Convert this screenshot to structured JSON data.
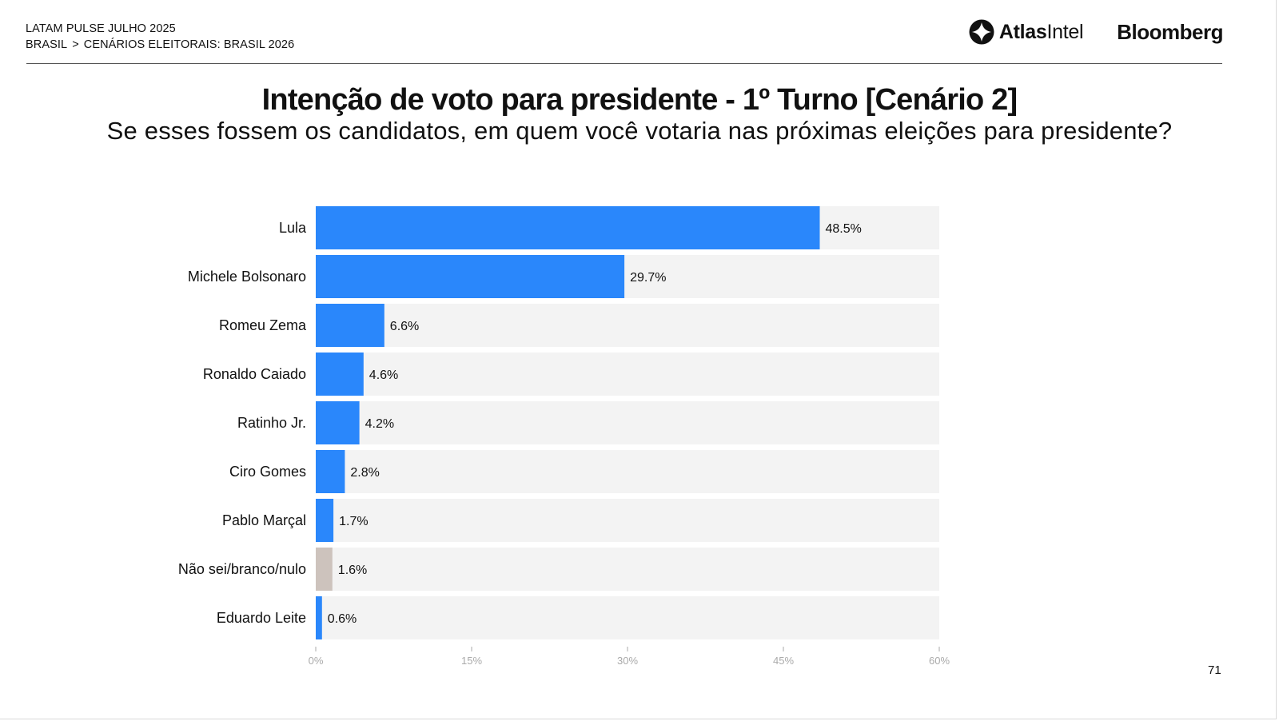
{
  "header": {
    "line1": "LATAM PULSE JULHO 2025",
    "crumb_root": "BRASIL",
    "crumb_separator": ">",
    "crumb_current": "CENÁRIOS ELEITORAIS: BRASIL 2026",
    "brand_atlas_bold": "Atlas",
    "brand_atlas_regular": "Intel",
    "brand_bloomberg": "Bloomberg"
  },
  "page_number": "71",
  "colors": {
    "bar_candidate": "#2a87fb",
    "bar_undecided": "#cdc3bd",
    "track": "#f3f3f3",
    "tick": "#aaaaaa"
  },
  "chart_data": {
    "type": "bar",
    "orientation": "horizontal",
    "title": "Intenção de voto para presidente - 1º Turno [Cenário 2]",
    "subtitle": "Se esses fossem os candidatos, em quem você votaria nas próximas eleições para presidente?",
    "categories": [
      "Lula",
      "Michele Bolsonaro",
      "Romeu Zema",
      "Ronaldo Caiado",
      "Ratinho Jr.",
      "Ciro Gomes",
      "Pablo Marçal",
      "Não sei/branco/nulo",
      "Eduardo Leite"
    ],
    "values": [
      48.5,
      29.7,
      6.6,
      4.6,
      4.2,
      2.8,
      1.7,
      1.6,
      0.6
    ],
    "value_labels": [
      "48.5%",
      "29.7%",
      "6.6%",
      "4.6%",
      "4.2%",
      "2.8%",
      "1.7%",
      "1.6%",
      "0.6%"
    ],
    "bar_color_keys": [
      "candidate",
      "candidate",
      "candidate",
      "candidate",
      "candidate",
      "candidate",
      "candidate",
      "undecided",
      "candidate"
    ],
    "xlim": [
      0,
      60
    ],
    "xticks": [
      0,
      15,
      30,
      45,
      60
    ],
    "xtick_labels": [
      "0%",
      "15%",
      "30%",
      "45%",
      "60%"
    ],
    "grid": false,
    "legend": "none"
  }
}
